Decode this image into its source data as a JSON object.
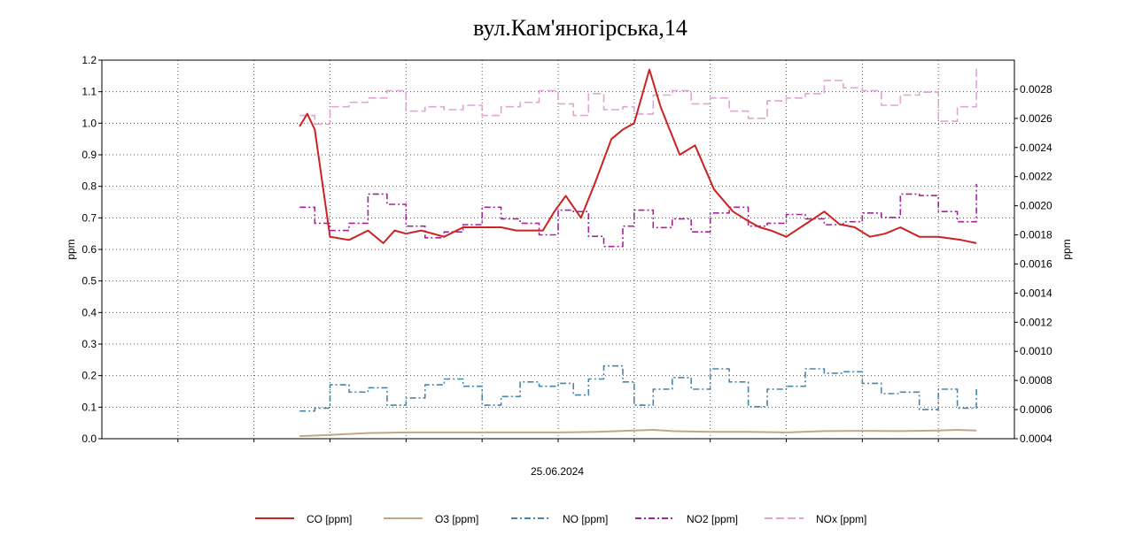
{
  "chart_data": {
    "type": "line",
    "title": "вул.Кам'яногірська,14",
    "xlabel": "25.06.2024",
    "ylabel_left": "ppm",
    "ylabel_right": "ppm",
    "ylim_left": [
      0,
      1.2
    ],
    "ylim_right": [
      0.0004,
      0.003
    ],
    "yticks_left": [
      "0.0",
      "0.1",
      "0.2",
      "0.3",
      "0.4",
      "0.5",
      "0.6",
      "0.7",
      "0.8",
      "0.9",
      "1.0",
      "1.1",
      "1.2"
    ],
    "yticks_right": [
      "0.0004",
      "0.0006",
      "0.0008",
      "0.0010",
      "0.0012",
      "0.0014",
      "0.0016",
      "0.0018",
      "0.0020",
      "0.0022",
      "0.0024",
      "0.0026",
      "0.0028"
    ],
    "x_range_hours": [
      0,
      24
    ],
    "grid": true,
    "series": [
      {
        "name": "CO [ppm]",
        "axis": "left",
        "color": "#cc2222",
        "style": "solid",
        "x": [
          5.2,
          5.4,
          5.6,
          6.0,
          6.5,
          7.0,
          7.4,
          7.7,
          8.0,
          8.4,
          9.0,
          9.5,
          10.0,
          10.5,
          10.9,
          11.3,
          11.6,
          11.9,
          12.2,
          12.6,
          13.0,
          13.4,
          13.7,
          14.0,
          14.4,
          14.7,
          15.2,
          15.6,
          16.1,
          16.6,
          17.0,
          17.3,
          17.6,
          18.0,
          18.5,
          19.0,
          19.4,
          19.8,
          20.2,
          20.6,
          21.0,
          21.5,
          22.0,
          22.6,
          23.0
        ],
        "values": [
          0.99,
          1.03,
          0.98,
          0.64,
          0.63,
          0.66,
          0.62,
          0.66,
          0.65,
          0.66,
          0.64,
          0.67,
          0.67,
          0.67,
          0.66,
          0.66,
          0.66,
          0.72,
          0.77,
          0.7,
          0.82,
          0.95,
          0.98,
          1.0,
          1.17,
          1.05,
          0.9,
          0.93,
          0.79,
          0.72,
          0.69,
          0.67,
          0.66,
          0.64,
          0.68,
          0.72,
          0.68,
          0.67,
          0.64,
          0.65,
          0.67,
          0.64,
          0.64,
          0.63,
          0.62
        ]
      },
      {
        "name": "O3 [ppm]",
        "axis": "left",
        "color": "#c2a787",
        "style": "solid",
        "x": [
          5.2,
          6.0,
          7.0,
          8.0,
          9.0,
          10.0,
          11.0,
          12.0,
          13.0,
          14.0,
          14.5,
          15.0,
          16.0,
          17.0,
          18.0,
          19.0,
          20.0,
          21.0,
          22.0,
          22.5,
          23.0
        ],
        "values": [
          0.008,
          0.012,
          0.018,
          0.02,
          0.02,
          0.02,
          0.02,
          0.02,
          0.022,
          0.026,
          0.028,
          0.024,
          0.022,
          0.022,
          0.02,
          0.024,
          0.025,
          0.024,
          0.026,
          0.028,
          0.026
        ]
      },
      {
        "name": "NO [ppm]",
        "axis": "right",
        "color": "#4a86a8",
        "style": "dashdot",
        "x": [
          5.2,
          5.6,
          6.0,
          6.5,
          7.0,
          7.5,
          8.0,
          8.5,
          9.0,
          9.5,
          10.0,
          10.5,
          11.0,
          11.5,
          12.0,
          12.4,
          12.8,
          13.2,
          13.7,
          14.0,
          14.5,
          15.0,
          15.5,
          16.0,
          16.5,
          17.0,
          17.5,
          18.0,
          18.5,
          19.0,
          19.5,
          20.0,
          20.5,
          21.0,
          21.5,
          22.0,
          22.5,
          23.0
        ],
        "values": [
          0.00059,
          0.00061,
          0.00077,
          0.00072,
          0.00075,
          0.00063,
          0.00068,
          0.00077,
          0.00081,
          0.00076,
          0.00063,
          0.00069,
          0.00079,
          0.00076,
          0.00078,
          0.0007,
          0.00081,
          0.0009,
          0.00079,
          0.00063,
          0.00074,
          0.00082,
          0.00074,
          0.00088,
          0.00079,
          0.00062,
          0.00074,
          0.00076,
          0.00088,
          0.00085,
          0.00086,
          0.00078,
          0.00071,
          0.00072,
          0.0006,
          0.00074,
          0.00061,
          0.00076
        ]
      },
      {
        "name": "NO2 [ppm]",
        "axis": "right",
        "color": "#a8229a",
        "style": "dashdot",
        "x": [
          5.2,
          5.6,
          6.0,
          6.5,
          7.0,
          7.5,
          8.0,
          8.5,
          9.0,
          9.5,
          10.0,
          10.5,
          11.0,
          11.5,
          12.0,
          12.4,
          12.8,
          13.2,
          13.7,
          14.0,
          14.5,
          15.0,
          15.5,
          16.0,
          16.5,
          17.0,
          17.5,
          18.0,
          18.5,
          19.0,
          19.5,
          20.0,
          20.5,
          21.0,
          21.5,
          22.0,
          22.5,
          23.0
        ],
        "values": [
          0.00199,
          0.00188,
          0.00183,
          0.00188,
          0.00208,
          0.00201,
          0.00186,
          0.00178,
          0.00182,
          0.00187,
          0.00199,
          0.00191,
          0.00188,
          0.0018,
          0.00197,
          0.00196,
          0.00179,
          0.00172,
          0.00186,
          0.00197,
          0.00185,
          0.00191,
          0.00182,
          0.00195,
          0.00199,
          0.00186,
          0.00188,
          0.00194,
          0.00191,
          0.00187,
          0.00189,
          0.00195,
          0.00192,
          0.00208,
          0.00207,
          0.00196,
          0.00189,
          0.00215
        ]
      },
      {
        "name": "NOx [ppm]",
        "axis": "right",
        "color": "#e2a4d4",
        "style": "dashed",
        "x": [
          5.2,
          5.6,
          6.0,
          6.5,
          7.0,
          7.5,
          8.0,
          8.5,
          9.0,
          9.5,
          10.0,
          10.5,
          11.0,
          11.5,
          12.0,
          12.4,
          12.8,
          13.2,
          13.7,
          14.0,
          14.5,
          15.0,
          15.5,
          16.0,
          16.5,
          17.0,
          17.5,
          18.0,
          18.5,
          19.0,
          19.5,
          20.0,
          20.5,
          21.0,
          21.5,
          22.0,
          22.5,
          23.0
        ],
        "values": [
          0.00262,
          0.00256,
          0.00268,
          0.00271,
          0.00274,
          0.00279,
          0.00265,
          0.00268,
          0.00266,
          0.00269,
          0.00262,
          0.00268,
          0.00271,
          0.00279,
          0.0027,
          0.00262,
          0.00277,
          0.00266,
          0.00268,
          0.00263,
          0.00276,
          0.00279,
          0.0027,
          0.00274,
          0.00265,
          0.0026,
          0.00272,
          0.00274,
          0.00277,
          0.00286,
          0.00281,
          0.00279,
          0.00269,
          0.00276,
          0.00278,
          0.00258,
          0.00268,
          0.00294
        ]
      }
    ],
    "legend": {
      "position": "bottom",
      "items": [
        "CO [ppm]",
        "O3 [ppm]",
        "NO [ppm]",
        "NO2 [ppm]",
        "NOx [ppm]"
      ]
    }
  }
}
